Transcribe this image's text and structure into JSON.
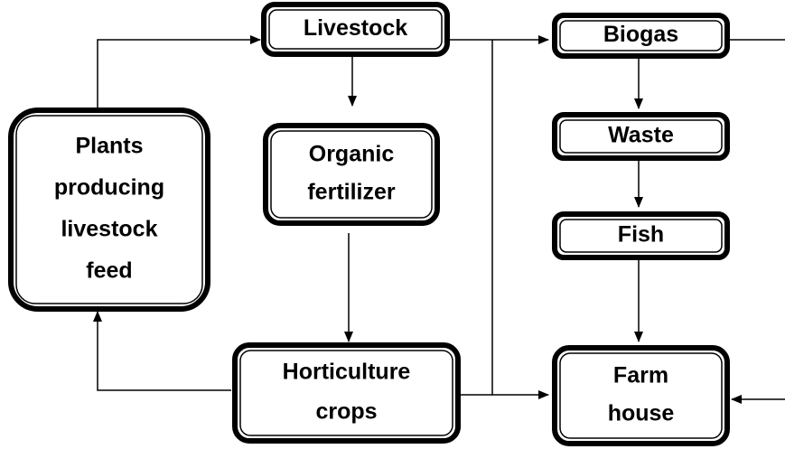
{
  "nodes": [
    {
      "label": [
        "Livestock"
      ]
    },
    {
      "label": [
        "Biogas"
      ]
    },
    {
      "label": [
        "Waste"
      ]
    },
    {
      "label": [
        "Fish"
      ]
    },
    {
      "label": [
        "Organic",
        "fertilizer"
      ]
    },
    {
      "label": [
        "Plants",
        "producing",
        "livestock",
        "feed"
      ]
    },
    {
      "label": [
        "Horticulture",
        "crops"
      ]
    },
    {
      "label": [
        "Farm",
        "house"
      ]
    }
  ]
}
